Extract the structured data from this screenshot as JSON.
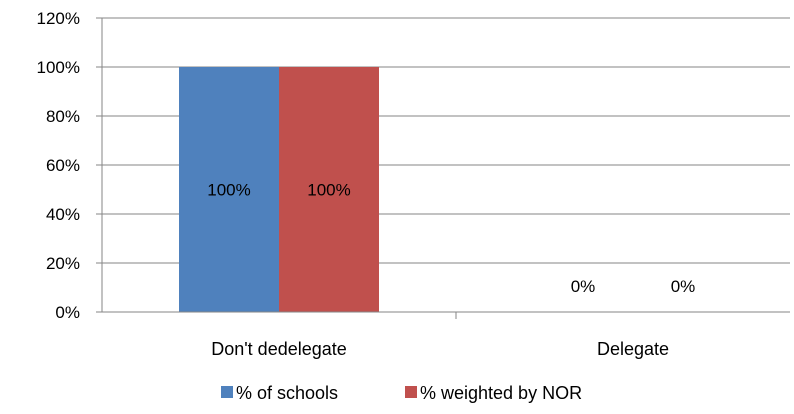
{
  "chart_data": {
    "type": "bar",
    "categories": [
      "Don't dedelegate",
      "Delegate"
    ],
    "series": [
      {
        "name": "% of schools",
        "values": [
          100,
          0
        ],
        "color": "#4F81BD",
        "labels": [
          "100%",
          "0%"
        ]
      },
      {
        "name": "% weighted by NOR",
        "values": [
          100,
          0
        ],
        "color": "#C0504D",
        "labels": [
          "100%",
          "0%"
        ]
      }
    ],
    "yticks": [
      "0%",
      "20%",
      "40%",
      "60%",
      "80%",
      "100%",
      "120%"
    ],
    "ylim": [
      0,
      120
    ],
    "grid": true,
    "legend": "bottom"
  }
}
